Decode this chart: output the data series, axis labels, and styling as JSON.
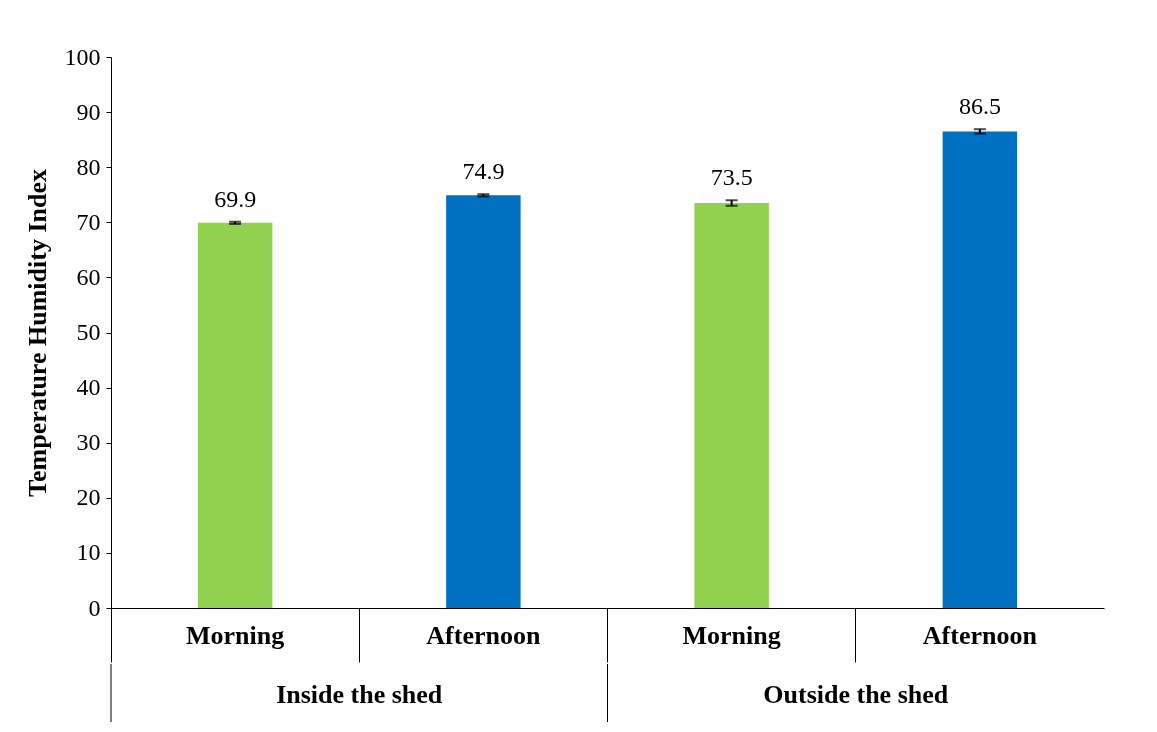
{
  "chart_data": {
    "type": "bar",
    "ylabel": "Temperature Humidity Index",
    "categories": [
      "Morning",
      "Afternoon",
      "Morning",
      "Afternoon"
    ],
    "values": [
      69.9,
      74.9,
      73.5,
      86.5
    ],
    "errors": [
      0.2,
      0.2,
      0.5,
      0.4
    ],
    "colors": [
      "#92d050",
      "#0070c0",
      "#92d050",
      "#0070c0"
    ],
    "ylim": [
      0,
      100
    ],
    "yticks": [
      0,
      10,
      20,
      30,
      40,
      50,
      60,
      70,
      80,
      90,
      100
    ],
    "data_labels": true,
    "grid": false,
    "annotations": [
      "Inside the shed",
      "Outside the shed"
    ]
  }
}
